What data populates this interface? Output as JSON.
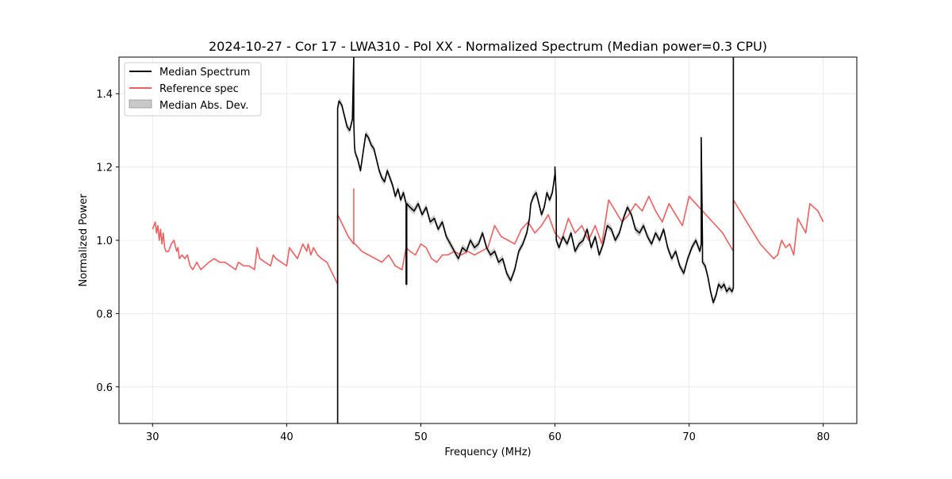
{
  "chart_data": {
    "type": "line",
    "title": "2024-10-27 - Cor 17 - LWA310 - Pol XX - Normalized Spectrum (Median power=0.3 CPU)",
    "xlabel": "Frequency (MHz)",
    "ylabel": "Normalized Power",
    "xlim": [
      27.5,
      82.5
    ],
    "ylim": [
      0.5,
      1.5
    ],
    "xticks": [
      30,
      40,
      50,
      60,
      70,
      80
    ],
    "yticks": [
      0.6,
      0.8,
      1.0,
      1.2,
      1.4
    ],
    "xtick_labels": [
      "30",
      "40",
      "50",
      "60",
      "70",
      "80"
    ],
    "ytick_labels": [
      "0.6",
      "0.8",
      "1.0",
      "1.2",
      "1.4"
    ],
    "grid": true,
    "legend": {
      "position": "top-left",
      "entries": [
        {
          "label": "Median Spectrum",
          "kind": "line",
          "color": "#000000"
        },
        {
          "label": "Reference spec",
          "kind": "line",
          "color": "#f06060"
        },
        {
          "label": "Median Abs. Dev.",
          "kind": "band",
          "color": "#c8c8c8"
        }
      ]
    },
    "series": [
      {
        "name": "Median Spectrum",
        "color": "#000000",
        "x": [
          43.8,
          43.8,
          43.9,
          44.1,
          44.3,
          44.5,
          44.7,
          44.9,
          45.0,
          45.0,
          45.05,
          45.1,
          45.3,
          45.5,
          45.7,
          45.9,
          46.1,
          46.3,
          46.5,
          46.7,
          46.9,
          47.1,
          47.3,
          47.5,
          47.7,
          47.9,
          48.1,
          48.3,
          48.5,
          48.7,
          48.9,
          48.9,
          48.95,
          48.95,
          49.2,
          49.5,
          49.8,
          50.1,
          50.4,
          50.7,
          51.0,
          51.3,
          51.6,
          51.9,
          52.2,
          52.5,
          52.8,
          53.1,
          53.4,
          53.7,
          54.0,
          54.3,
          54.6,
          54.9,
          55.2,
          55.5,
          55.8,
          56.1,
          56.4,
          56.7,
          57.0,
          57.3,
          57.6,
          57.9,
          58.1,
          58.2,
          58.4,
          58.6,
          58.8,
          59.0,
          59.2,
          59.4,
          59.6,
          59.8,
          60.0,
          60.0,
          60.1,
          60.1,
          60.3,
          60.6,
          60.9,
          61.2,
          61.5,
          61.8,
          62.1,
          62.4,
          62.7,
          63.0,
          63.3,
          63.6,
          63.9,
          64.2,
          64.5,
          64.8,
          65.1,
          65.4,
          65.7,
          66.0,
          66.3,
          66.6,
          66.9,
          67.2,
          67.5,
          67.8,
          68.1,
          68.4,
          68.7,
          69.0,
          69.3,
          69.6,
          69.9,
          70.2,
          70.5,
          70.8,
          70.9,
          70.9,
          71.0,
          71.0,
          71.2,
          71.4,
          71.6,
          71.8,
          72.0,
          72.2,
          72.4,
          72.6,
          72.8,
          73.0,
          73.2,
          73.3,
          73.3
        ],
        "y": [
          0.5,
          1.36,
          1.38,
          1.37,
          1.34,
          1.31,
          1.3,
          1.33,
          1.5,
          1.33,
          1.26,
          1.24,
          1.22,
          1.19,
          1.24,
          1.29,
          1.28,
          1.26,
          1.25,
          1.22,
          1.19,
          1.17,
          1.16,
          1.19,
          1.17,
          1.15,
          1.12,
          1.14,
          1.11,
          1.13,
          1.1,
          0.88,
          0.88,
          1.1,
          1.09,
          1.08,
          1.1,
          1.07,
          1.09,
          1.05,
          1.06,
          1.03,
          1.05,
          1.01,
          0.99,
          0.97,
          0.95,
          0.98,
          0.97,
          1.0,
          0.98,
          0.99,
          1.02,
          0.98,
          0.96,
          0.97,
          0.94,
          0.95,
          0.91,
          0.89,
          0.92,
          0.97,
          0.99,
          1.02,
          1.06,
          1.1,
          1.12,
          1.13,
          1.1,
          1.07,
          1.09,
          1.13,
          1.11,
          1.13,
          1.18,
          1.2,
          1.12,
          1.0,
          0.98,
          1.01,
          0.99,
          1.02,
          0.97,
          0.99,
          1.0,
          1.03,
          0.98,
          1.01,
          0.96,
          0.99,
          1.04,
          1.03,
          1.0,
          1.02,
          1.06,
          1.09,
          1.07,
          1.03,
          1.02,
          1.04,
          1.01,
          0.99,
          1.02,
          1.0,
          1.03,
          0.98,
          0.95,
          0.97,
          0.93,
          0.91,
          0.95,
          0.98,
          1.0,
          0.97,
          0.99,
          1.28,
          0.99,
          0.94,
          0.93,
          0.9,
          0.86,
          0.83,
          0.85,
          0.88,
          0.87,
          0.88,
          0.86,
          0.87,
          0.86,
          0.87,
          1.5
        ]
      },
      {
        "name": "Reference spec",
        "color": "#f06060",
        "x": [
          30.0,
          30.2,
          30.3,
          30.4,
          30.5,
          30.6,
          30.7,
          30.8,
          30.9,
          31.0,
          31.2,
          31.4,
          31.6,
          31.8,
          31.9,
          32.0,
          32.2,
          32.4,
          32.6,
          32.8,
          33.0,
          33.3,
          33.6,
          33.9,
          34.2,
          34.6,
          35.0,
          35.4,
          35.8,
          36.2,
          36.4,
          36.8,
          37.2,
          37.6,
          37.8,
          38.0,
          38.4,
          38.8,
          39.0,
          39.2,
          39.6,
          40.0,
          40.2,
          40.4,
          40.8,
          41.2,
          41.5,
          41.6,
          41.8,
          42.0,
          42.3,
          42.6,
          43.0,
          43.4,
          43.8,
          43.8,
          44.2,
          44.6,
          45.0,
          45.0,
          45.0,
          45.1,
          45.6,
          46.1,
          46.6,
          47.1,
          47.6,
          48.1,
          48.6,
          48.9,
          49.2,
          49.6,
          50.0,
          50.4,
          50.8,
          51.2,
          51.6,
          52.0,
          52.5,
          53.0,
          53.5,
          54.0,
          54.5,
          55.0,
          55.5,
          56.0,
          56.5,
          57.0,
          57.5,
          58.0,
          58.5,
          59.0,
          59.5,
          60.0,
          60.5,
          61.0,
          61.5,
          62.0,
          62.5,
          63.0,
          63.5,
          64.0,
          64.5,
          65.0,
          65.5,
          66.0,
          66.5,
          67.0,
          67.5,
          68.0,
          68.5,
          69.0,
          69.5,
          70.0,
          70.5,
          71.0,
          71.5,
          72.0,
          72.5,
          73.3,
          73.3,
          73.8,
          74.3,
          74.8,
          75.3,
          75.8,
          76.3,
          76.6,
          76.9,
          77.2,
          77.5,
          77.8,
          78.1,
          78.4,
          78.7,
          79.0,
          79.3,
          79.6,
          80.0
        ],
        "y": [
          1.03,
          1.05,
          1.02,
          1.04,
          1.0,
          1.03,
          0.99,
          1.02,
          0.98,
          0.97,
          0.97,
          0.99,
          1.0,
          0.97,
          0.98,
          0.95,
          0.96,
          0.95,
          0.96,
          0.93,
          0.92,
          0.94,
          0.92,
          0.93,
          0.94,
          0.95,
          0.94,
          0.94,
          0.93,
          0.92,
          0.94,
          0.93,
          0.93,
          0.92,
          0.98,
          0.95,
          0.94,
          0.93,
          0.96,
          0.95,
          0.94,
          0.93,
          0.98,
          0.97,
          0.95,
          0.99,
          0.97,
          0.99,
          0.96,
          0.98,
          0.96,
          0.95,
          0.94,
          0.91,
          0.88,
          1.07,
          1.04,
          1.01,
          0.99,
          1.14,
          0.99,
          0.99,
          0.97,
          0.96,
          0.95,
          0.94,
          0.96,
          0.93,
          0.92,
          0.98,
          0.97,
          0.96,
          0.99,
          0.98,
          0.95,
          0.94,
          0.96,
          0.96,
          0.97,
          0.96,
          0.97,
          0.96,
          0.97,
          0.98,
          1.04,
          1.01,
          1.0,
          0.99,
          1.03,
          1.05,
          1.02,
          1.04,
          1.07,
          1.02,
          1.0,
          1.06,
          1.02,
          1.04,
          1.0,
          1.04,
          0.99,
          1.11,
          1.08,
          1.05,
          1.07,
          1.1,
          1.08,
          1.12,
          1.08,
          1.05,
          1.1,
          1.07,
          1.04,
          1.12,
          1.1,
          1.08,
          1.06,
          1.04,
          1.02,
          0.97,
          1.11,
          1.08,
          1.05,
          1.02,
          0.99,
          0.97,
          0.95,
          0.96,
          1.0,
          0.98,
          0.99,
          0.96,
          1.06,
          1.04,
          1.02,
          1.1,
          1.09,
          1.08,
          1.05
        ]
      }
    ]
  }
}
